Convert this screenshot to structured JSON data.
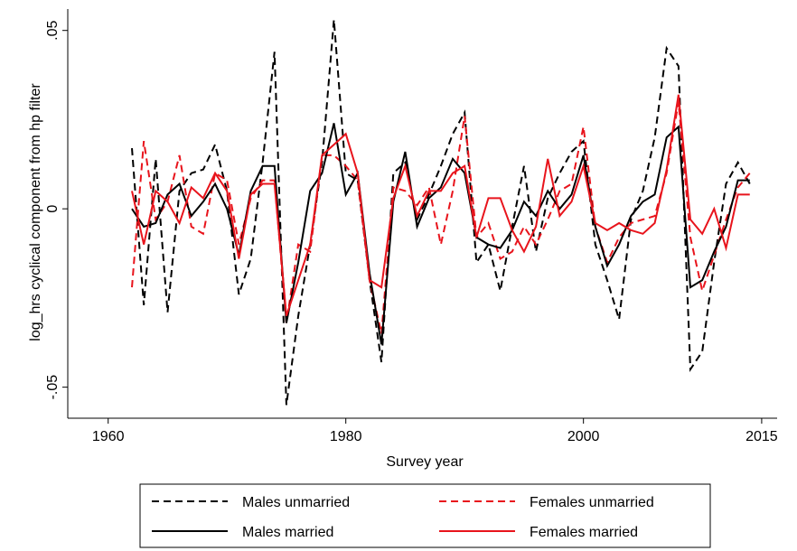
{
  "chart_data": {
    "type": "line",
    "x_label": "Survey year",
    "y_label": "log_hrs cyclical component from hp filter",
    "x": [
      1962,
      1963,
      1964,
      1965,
      1966,
      1967,
      1968,
      1969,
      1970,
      1971,
      1972,
      1973,
      1974,
      1975,
      1976,
      1977,
      1978,
      1979,
      1980,
      1981,
      1982,
      1983,
      1984,
      1985,
      1986,
      1987,
      1988,
      1989,
      1990,
      1991,
      1992,
      1993,
      1994,
      1995,
      1996,
      1997,
      1998,
      1999,
      2000,
      2001,
      2002,
      2003,
      2004,
      2005,
      2006,
      2007,
      2008,
      2009,
      2010,
      2011,
      2012,
      2013,
      2014
    ],
    "xlim": [
      1956.6,
      2016.3
    ],
    "xticks": [
      1960,
      1980,
      2000,
      2015
    ],
    "ylim": [
      -0.0587,
      0.056
    ],
    "yticks": [
      {
        "value": -0.05,
        "label": "-.05"
      },
      0,
      {
        "value": 0.05,
        "label": ".05"
      }
    ],
    "series": [
      {
        "name": "Males unmarried",
        "color": "#000000",
        "dash": true,
        "values": [
          0.017,
          -0.027,
          0.014,
          -0.029,
          0.005,
          0.01,
          0.011,
          0.018,
          0.005,
          -0.024,
          -0.014,
          0.013,
          0.044,
          -0.055,
          -0.03,
          -0.01,
          0.013,
          0.053,
          0.01,
          0.008,
          -0.02,
          -0.043,
          0.01,
          0.013,
          -0.003,
          0.004,
          0.012,
          0.021,
          0.027,
          -0.015,
          -0.01,
          -0.023,
          -0.005,
          0.012,
          -0.012,
          0.003,
          0.01,
          0.016,
          0.019,
          -0.01,
          -0.02,
          -0.031,
          -0.003,
          0.005,
          0.02,
          0.045,
          0.04,
          -0.045,
          -0.04,
          -0.015,
          0.007,
          0.013,
          0.007
        ]
      },
      {
        "name": "Females unmarried",
        "color": "#e8141c",
        "dash": true,
        "values": [
          -0.022,
          0.019,
          -0.003,
          0.002,
          0.015,
          -0.005,
          -0.007,
          0.01,
          0.008,
          -0.01,
          0.003,
          0.008,
          0.008,
          -0.032,
          -0.01,
          -0.012,
          0.015,
          0.015,
          0.012,
          0.008,
          -0.02,
          -0.035,
          0.006,
          0.005,
          0.001,
          0.006,
          -0.01,
          0.005,
          0.026,
          -0.008,
          -0.004,
          -0.014,
          -0.012,
          -0.005,
          -0.01,
          -0.003,
          0.005,
          0.007,
          0.023,
          -0.005,
          -0.015,
          -0.008,
          -0.004,
          -0.003,
          -0.002,
          0.01,
          0.03,
          -0.008,
          -0.023,
          -0.013,
          -0.003,
          0.006,
          0.01
        ]
      },
      {
        "name": "Males married",
        "color": "#000000",
        "dash": false,
        "values": [
          0,
          -0.005,
          -0.004,
          0.004,
          0.007,
          -0.002,
          0.002,
          0.007,
          0,
          -0.013,
          0.005,
          0.012,
          0.012,
          -0.032,
          -0.015,
          0.005,
          0.01,
          0.024,
          0.004,
          0.01,
          -0.018,
          -0.038,
          0.002,
          0.016,
          -0.005,
          0.003,
          0.006,
          0.014,
          0.01,
          -0.008,
          -0.01,
          -0.011,
          -0.006,
          0.002,
          -0.002,
          0.005,
          0,
          0.004,
          0.015,
          -0.005,
          -0.016,
          -0.01,
          -0.002,
          0.002,
          0.004,
          0.02,
          0.023,
          -0.022,
          -0.02,
          -0.012,
          -0.005,
          0.008,
          0.008
        ]
      },
      {
        "name": "Females married",
        "color": "#e8141c",
        "dash": false,
        "values": [
          0.005,
          -0.01,
          0.005,
          0.002,
          -0.004,
          0.006,
          0.003,
          0.01,
          0.005,
          -0.014,
          0.004,
          0.007,
          0.007,
          -0.03,
          -0.02,
          -0.01,
          0.015,
          0.018,
          0.021,
          0.01,
          -0.02,
          -0.022,
          0.003,
          0.012,
          -0.002,
          0.005,
          0.005,
          0.01,
          0.012,
          -0.008,
          0.003,
          0.003,
          -0.006,
          -0.012,
          -0.005,
          0.014,
          -0.002,
          0.002,
          0.012,
          -0.004,
          -0.006,
          -0.004,
          -0.006,
          -0.007,
          -0.004,
          0.011,
          0.032,
          -0.003,
          -0.007,
          0,
          -0.011,
          0.004,
          0.004
        ]
      }
    ]
  }
}
